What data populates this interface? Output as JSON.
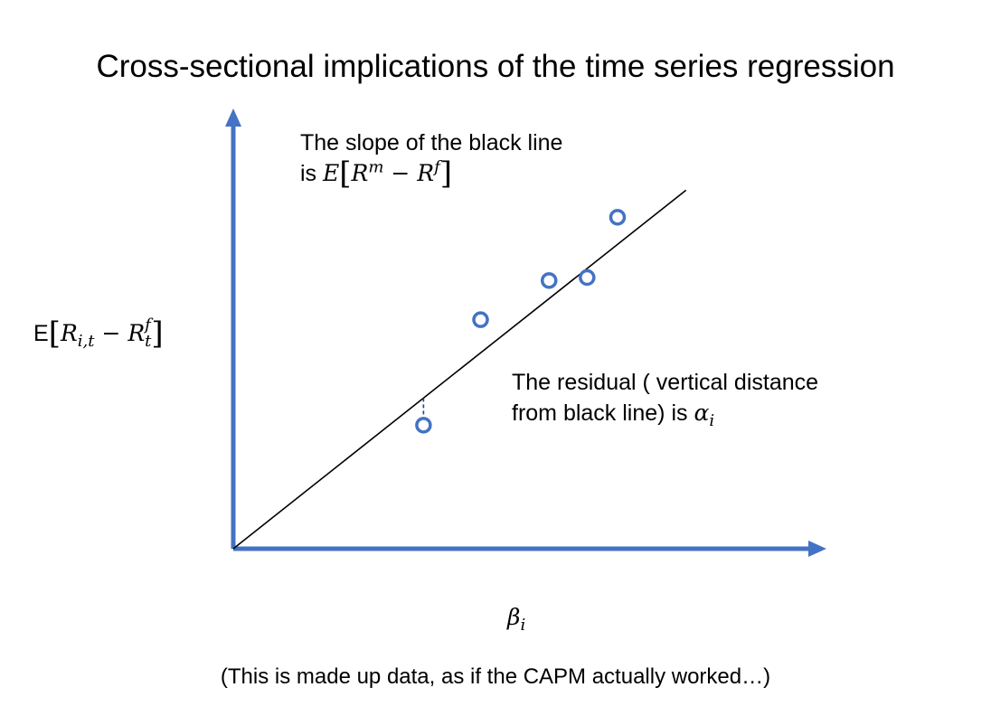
{
  "title": "Cross-sectional implications of the time series regression",
  "slope_note": {
    "line1": "The slope of the black line",
    "prefix": "is",
    "expr_E": "E",
    "expr_open": "[",
    "expr_R": "R",
    "expr_m": "m",
    "expr_minus": " − ",
    "expr_R2": "R",
    "expr_f": "f",
    "expr_close": "]"
  },
  "residual_note": {
    "line1": "The residual ( vertical distance",
    "line2_prefix": "from black line) is",
    "alpha": "α",
    "alpha_sub": "i"
  },
  "y_axis_label": {
    "E": "E",
    "open": "[",
    "R": "R",
    "sub_it": "i,t",
    "minus": " − ",
    "R2": "R",
    "sup_f": "f",
    "sub_t": "t",
    "close": "]"
  },
  "x_axis_label": {
    "beta": "β",
    "sub": "i"
  },
  "footnote": "(This is made up data, as if the CAPM actually worked…)",
  "colors": {
    "axis": "#4472c4",
    "marker": "#4472c4",
    "line": "#000000",
    "residual": "#1f3f8f"
  },
  "chart_data": {
    "type": "scatter",
    "points": [
      {
        "x": 0.5,
        "y": 0.41
      },
      {
        "x": 0.65,
        "y": 0.76
      },
      {
        "x": 0.83,
        "y": 0.89
      },
      {
        "x": 0.93,
        "y": 0.9
      },
      {
        "x": 1.01,
        "y": 1.1
      }
    ],
    "fit_line": {
      "slope": 1.0,
      "intercept": 0.0,
      "x_range": [
        0,
        1.19
      ]
    },
    "residual_marker_point_index": 0,
    "xlim": [
      0,
      1.3
    ],
    "ylim": [
      0,
      1.2
    ],
    "grid": false
  }
}
